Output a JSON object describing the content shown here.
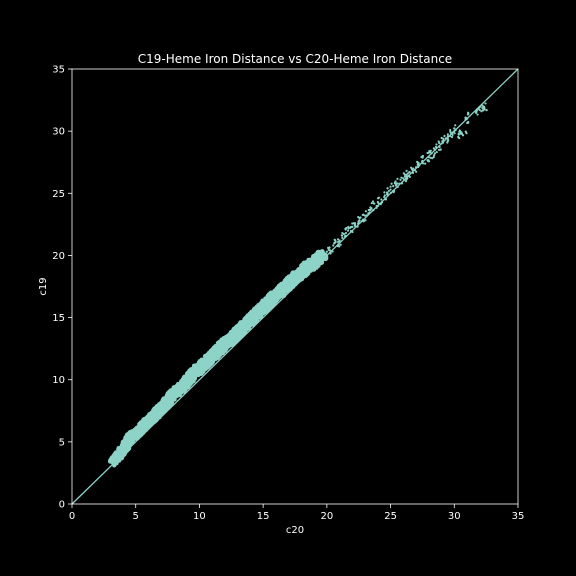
{
  "chart_data": {
    "type": "scatter",
    "title": "C19-Heme Iron Distance vs C20-Heme Iron Distance",
    "xlabel": "c20",
    "ylabel": "c19",
    "xlim": [
      0,
      35
    ],
    "ylim": [
      0,
      35
    ],
    "xticks": [
      0,
      5,
      10,
      15,
      20,
      25,
      30,
      35
    ],
    "yticks": [
      0,
      5,
      10,
      15,
      20,
      25,
      30,
      35
    ],
    "grid": false,
    "legend": "none",
    "diagonal_reference_line": [
      [
        0,
        0
      ],
      [
        35,
        35
      ]
    ],
    "colors": {
      "background": "#000000",
      "foreground": "#ffffff",
      "points": "#8dd3c7",
      "reference_line": "#8dd3c7"
    },
    "series": [
      {
        "points": [
          [
            3.4,
            3.6
          ],
          [
            3.7,
            4.0
          ],
          [
            4.0,
            4.4
          ],
          [
            4.3,
            4.9
          ],
          [
            4.6,
            5.4
          ],
          [
            5.0,
            5.6
          ],
          [
            5.3,
            5.9
          ],
          [
            5.7,
            6.4
          ],
          [
            6.0,
            6.7
          ],
          [
            6.4,
            7.0
          ],
          [
            6.8,
            7.5
          ],
          [
            7.2,
            7.9
          ],
          [
            7.6,
            8.4
          ],
          [
            8.0,
            8.9
          ],
          [
            8.4,
            9.2
          ],
          [
            8.8,
            9.6
          ],
          [
            9.2,
            10.1
          ],
          [
            9.6,
            10.6
          ],
          [
            10.0,
            10.9
          ],
          [
            10.5,
            11.4
          ],
          [
            11.0,
            11.9
          ],
          [
            11.5,
            12.4
          ],
          [
            12.0,
            12.9
          ],
          [
            12.5,
            13.3
          ],
          [
            13.0,
            13.8
          ],
          [
            13.5,
            14.3
          ],
          [
            14.0,
            14.8
          ],
          [
            14.5,
            15.3
          ],
          [
            15.0,
            15.8
          ],
          [
            15.5,
            16.3
          ],
          [
            16.0,
            16.8
          ],
          [
            16.5,
            17.2
          ],
          [
            17.0,
            17.7
          ],
          [
            17.5,
            18.2
          ],
          [
            18.0,
            18.6
          ],
          [
            18.5,
            19.1
          ],
          [
            19.0,
            19.4
          ],
          [
            19.5,
            19.9
          ],
          [
            20.0,
            20.3
          ],
          [
            20.5,
            20.8
          ],
          [
            21.0,
            21.2
          ],
          [
            21.5,
            21.8
          ],
          [
            22.0,
            22.3
          ],
          [
            22.5,
            22.7
          ],
          [
            23.0,
            23.2
          ],
          [
            23.5,
            23.8
          ],
          [
            24.0,
            24.3
          ],
          [
            24.5,
            24.7
          ],
          [
            25.0,
            25.3
          ],
          [
            25.5,
            25.8
          ],
          [
            26.0,
            26.2
          ],
          [
            26.5,
            26.7
          ],
          [
            27.0,
            27.1
          ],
          [
            27.5,
            27.6
          ],
          [
            28.0,
            27.9
          ],
          [
            28.5,
            28.5
          ],
          [
            29.0,
            29.0
          ],
          [
            29.5,
            29.6
          ],
          [
            30.0,
            30.0
          ],
          [
            30.5,
            29.8
          ],
          [
            31.0,
            31.0
          ],
          [
            32.0,
            31.7
          ],
          [
            32.3,
            31.8
          ]
        ]
      }
    ]
  }
}
